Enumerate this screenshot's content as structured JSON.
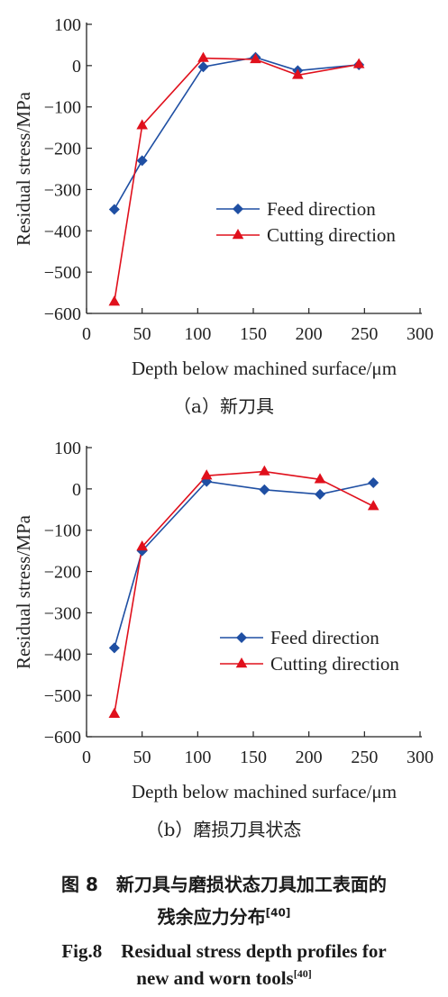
{
  "chart_data": [
    {
      "type": "line",
      "subcaption": "（a）新刀具",
      "xlabel": "Depth below machined surface/μm",
      "ylabel": "Residual stress/MPa",
      "xlim": [
        0,
        300
      ],
      "ylim": [
        -600,
        100
      ],
      "xticks": [
        0,
        50,
        100,
        150,
        200,
        250,
        300
      ],
      "yticks": [
        100,
        0,
        -100,
        -200,
        -300,
        -400,
        -500,
        -600
      ],
      "grid": false,
      "legend": "center-right",
      "series": [
        {
          "name": "Feed direction",
          "marker": "diamond",
          "color": "#1f4fa3",
          "x": [
            25,
            50,
            105,
            152,
            190,
            245
          ],
          "y": [
            -348,
            -230,
            -3,
            20,
            -12,
            2
          ]
        },
        {
          "name": "Cutting direction",
          "marker": "triangle",
          "color": "#e0101c",
          "x": [
            25,
            50,
            105,
            152,
            190,
            245
          ],
          "y": [
            -572,
            -145,
            18,
            15,
            -23,
            3
          ]
        }
      ]
    },
    {
      "type": "line",
      "subcaption": "（b）磨损刀具状态",
      "xlabel": "Depth below machined surface/μm",
      "ylabel": "Residual stress/MPa",
      "xlim": [
        0,
        300
      ],
      "ylim": [
        -600,
        100
      ],
      "xticks": [
        0,
        50,
        100,
        150,
        200,
        250,
        300
      ],
      "yticks": [
        100,
        0,
        -100,
        -200,
        -300,
        -400,
        -500,
        -600
      ],
      "grid": false,
      "legend": "center-right",
      "series": [
        {
          "name": "Feed direction",
          "marker": "diamond",
          "color": "#1f4fa3",
          "x": [
            25,
            50,
            108,
            160,
            210,
            258
          ],
          "y": [
            -385,
            -150,
            18,
            -2,
            -13,
            15
          ]
        },
        {
          "name": "Cutting direction",
          "marker": "triangle",
          "color": "#e0101c",
          "x": [
            25,
            50,
            108,
            160,
            210,
            258
          ],
          "y": [
            -545,
            -140,
            32,
            42,
            23,
            -42
          ]
        }
      ]
    }
  ],
  "figure_caption": {
    "cn_line1": "图 8　新刀具与磨损状态刀具加工表面的",
    "cn_line2": "残余应力分布",
    "cn_ref": "[40]",
    "en_line1": "Fig.8　Residual stress depth profiles for",
    "en_line2": "new and worn tools",
    "en_ref": "[40]"
  }
}
